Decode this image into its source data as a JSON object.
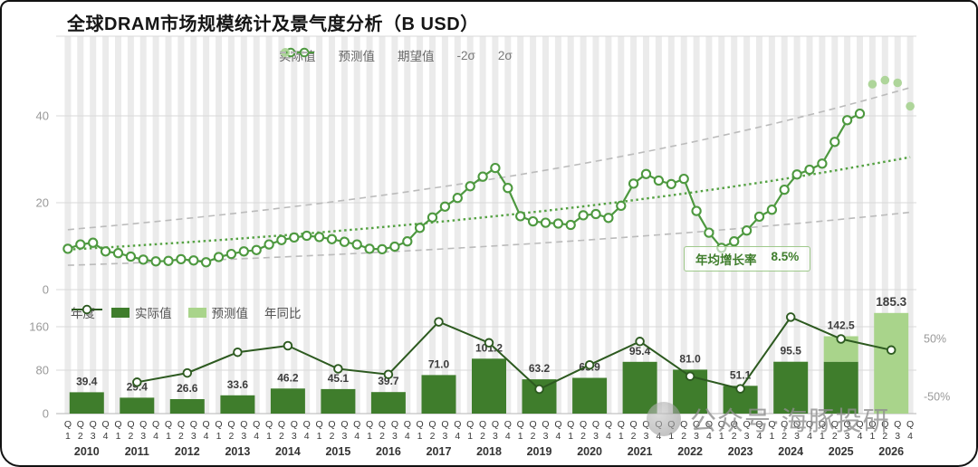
{
  "title": "全球DRAM市场规模统计及景气度分析（B USD）",
  "annotation": {
    "label": "年均增长率",
    "value": "8.5%"
  },
  "watermark": {
    "text": "公众号·海豚投研"
  },
  "legend_top": {
    "items": [
      {
        "label": "实际值"
      },
      {
        "label": "预测值"
      },
      {
        "label": "期望值"
      },
      {
        "label": "-2σ"
      },
      {
        "label": "2σ"
      }
    ]
  },
  "legend_bottom": {
    "axis_label": "年度",
    "items": [
      {
        "label": "实际值"
      },
      {
        "label": "预测值"
      },
      {
        "label": "年同比"
      }
    ]
  },
  "axis": {
    "quarter_prefix": "Q",
    "quarter_numbers": [
      "1",
      "2",
      "3",
      "4"
    ]
  },
  "colors": {
    "actual_line": "#4e9940",
    "forecast": "#aed59a",
    "expected": "#55a243",
    "sigma": "#bbbbbb",
    "bar_actual": "#3f7d2c",
    "bar_forecast": "#a9d48b",
    "yoy_line": "#2d5a20",
    "stripe": "#ebebeb",
    "grid": "#d9d9d9",
    "axis_text": "#999999",
    "label_text": "#3d3d3d"
  },
  "chart_data": [
    {
      "type": "line",
      "title": "全球DRAM市场规模统计及景气度分析（B USD）",
      "x_unit": "quarter",
      "yticks": [
        0,
        20,
        40
      ],
      "series_actual": {
        "name": "实际值",
        "values": [
          9.4,
          10.4,
          10.8,
          8.8,
          8.4,
          7.6,
          6.9,
          6.5,
          6.6,
          7.0,
          6.7,
          6.3,
          7.5,
          8.2,
          8.8,
          9.1,
          10.4,
          11.4,
          12.0,
          12.4,
          12.1,
          11.6,
          11.0,
          10.4,
          9.4,
          9.3,
          9.9,
          11.1,
          14.2,
          16.6,
          19.1,
          21.1,
          23.8,
          26.0,
          28.0,
          23.4,
          16.9,
          15.7,
          15.4,
          15.2,
          14.9,
          17.1,
          17.4,
          16.5,
          19.3,
          24.4,
          26.6,
          25.1,
          24.3,
          25.5,
          18.1,
          13.1,
          9.6,
          11.1,
          13.6,
          16.8,
          18.4,
          23.0,
          26.5,
          27.6,
          29.0,
          34.0,
          39.0,
          40.5
        ]
      },
      "series_forecast": {
        "name": "预测值",
        "values": [
          47.3,
          48.2,
          47.6,
          42.2
        ]
      },
      "expected": {
        "name": "期望值",
        "start": 9.2,
        "end": 30.5
      },
      "sigma_upper": {
        "name": "2σ",
        "start": 13.8,
        "end": 46.5
      },
      "sigma_lower": {
        "name": "-2σ",
        "start": 5.6,
        "end": 17.8
      },
      "annotation": "年均增长率 8.5%"
    },
    {
      "type": "bar",
      "categories": [
        "2010",
        "2011",
        "2012",
        "2013",
        "2014",
        "2015",
        "2016",
        "2017",
        "2018",
        "2019",
        "2020",
        "2021",
        "2022",
        "2023",
        "2024",
        "2025",
        "2026"
      ],
      "totals": [
        39.4,
        29.4,
        26.6,
        33.6,
        46.2,
        45.1,
        39.7,
        71.0,
        101.2,
        63.2,
        65.9,
        95.4,
        81.0,
        51.1,
        95.5,
        142.5,
        185.3
      ],
      "forecast_portion": [
        0,
        0,
        0,
        0,
        0,
        0,
        0,
        0,
        0,
        0,
        0,
        0,
        0,
        0,
        0,
        47.0,
        185.3
      ],
      "yoy_name": "年同比",
      "yoy_percent": [
        null,
        -25.4,
        -9.5,
        26.3,
        37.5,
        -2.4,
        -12.0,
        78.8,
        42.5,
        -37.5,
        4.3,
        44.8,
        -15.1,
        -36.9,
        86.9,
        49.2,
        30.0
      ],
      "left_ticks": [
        0,
        80,
        160
      ],
      "right_ticks": [
        "50%",
        "-50%"
      ],
      "ylabel": "",
      "xlabel": "年度"
    }
  ]
}
